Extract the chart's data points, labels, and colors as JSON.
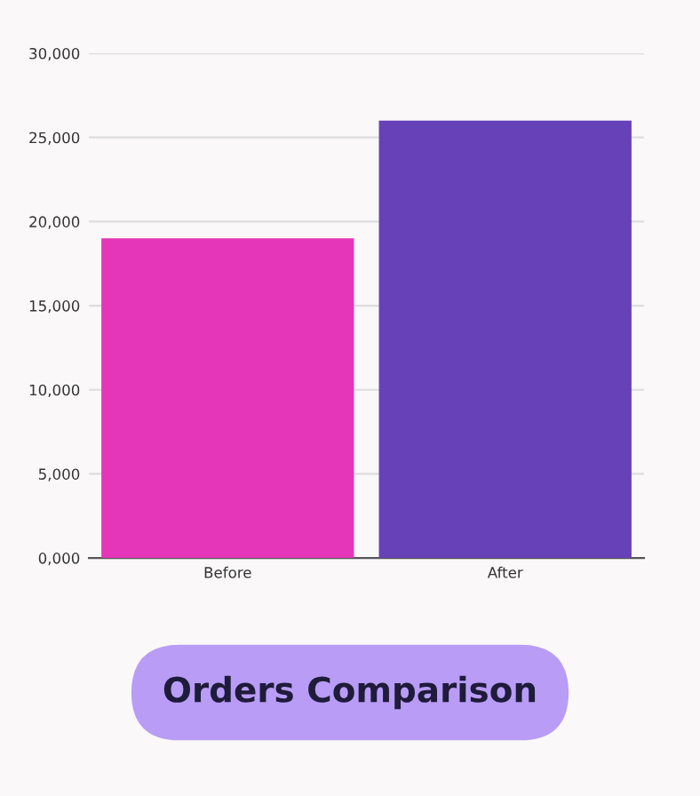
{
  "chart_data": {
    "type": "bar",
    "title": "Orders Comparison",
    "categories": [
      "Before",
      "After"
    ],
    "values": [
      19000,
      26000
    ],
    "colors": [
      "#e535b8",
      "#6741b8"
    ],
    "ylim": [
      0,
      30000
    ],
    "yticks": [
      {
        "value": 0,
        "label": "0,000"
      },
      {
        "value": 5000,
        "label": "5,000"
      },
      {
        "value": 10000,
        "label": "10,000"
      },
      {
        "value": 15000,
        "label": "15,000"
      },
      {
        "value": 20000,
        "label": "20,000"
      },
      {
        "value": 25000,
        "label": "25,000"
      },
      {
        "value": 30000,
        "label": "30,000"
      }
    ],
    "grid": "y",
    "legend": false
  }
}
